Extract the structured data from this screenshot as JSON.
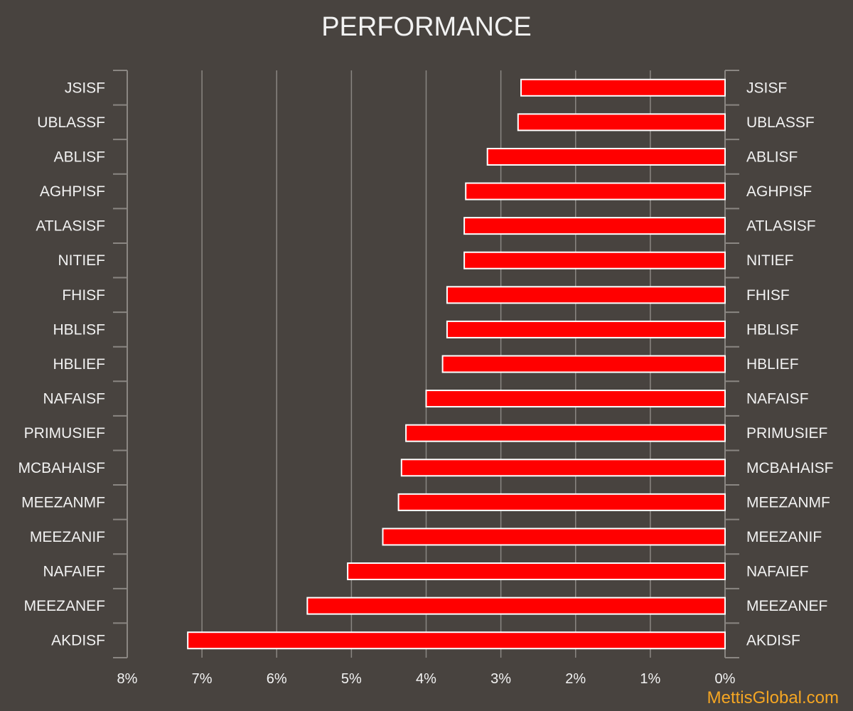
{
  "chart_data": {
    "type": "bar",
    "orientation": "horizontal",
    "title": "PERFORMANCE",
    "categories": [
      "JSISF",
      "UBLASSF",
      "ABLISF",
      "AGHPISF",
      "ATLASISF",
      "NITIEF",
      "FHISF",
      "HBLISF",
      "HBLIEF",
      "NAFAISF",
      "PRIMUSIEF",
      "MCBAHAISF",
      "MEEZANMF",
      "MEEZANIF",
      "NAFAIEF",
      "MEEZANEF",
      "AKDISF"
    ],
    "values": [
      2.73,
      2.77,
      3.18,
      3.47,
      3.49,
      3.49,
      3.72,
      3.72,
      3.78,
      4.0,
      4.27,
      4.33,
      4.37,
      4.58,
      5.05,
      5.59,
      7.19
    ],
    "value_unit": "%",
    "xlim": [
      0,
      8
    ],
    "x_reversed": true,
    "x_ticks": [
      8,
      7,
      6,
      5,
      4,
      3,
      2,
      1,
      0
    ],
    "x_tick_labels": [
      "8%",
      "7%",
      "6%",
      "5%",
      "4%",
      "3%",
      "2%",
      "1%",
      "0%"
    ],
    "grid": "vertical",
    "legend": "none",
    "category_labels_both_sides": true,
    "xlabel": "",
    "ylabel": ""
  },
  "colors": {
    "background": "#48433f",
    "bar_fill": "#ff0000",
    "bar_stroke": "#ffffff",
    "gridline": "#8a8682",
    "text": "#f2f2f2",
    "watermark": "#f5a623"
  },
  "watermark": "MettisGlobal.com"
}
